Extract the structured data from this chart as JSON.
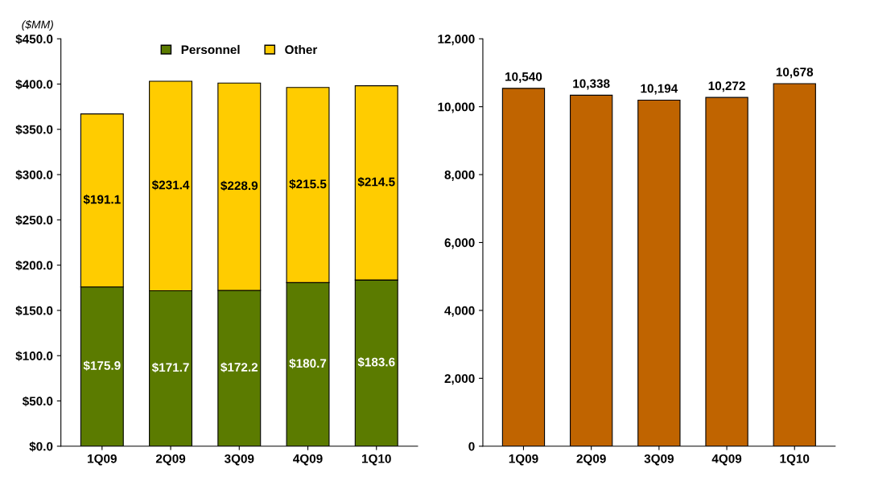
{
  "chart_data": [
    {
      "type": "bar",
      "stacked": true,
      "ylabel": "($MM)",
      "categories": [
        "1Q09",
        "2Q09",
        "3Q09",
        "4Q09",
        "1Q10"
      ],
      "series": [
        {
          "name": "Personnel",
          "color": "#5b7b00",
          "values": [
            175.9,
            171.7,
            172.2,
            180.7,
            183.6
          ],
          "value_labels": [
            "$175.9",
            "$171.7",
            "$172.2",
            "$180.7",
            "$183.6"
          ]
        },
        {
          "name": "Other",
          "color": "#ffcc00",
          "values": [
            191.1,
            231.4,
            228.9,
            215.5,
            214.5
          ],
          "value_labels": [
            "$191.1",
            "$231.4",
            "$228.9",
            "$215.5",
            "$214.5"
          ]
        }
      ],
      "ylim": [
        0,
        450
      ],
      "yticks": [
        {
          "value": 0,
          "label": "$0.0"
        },
        {
          "value": 50,
          "label": "$50.0"
        },
        {
          "value": 100,
          "label": "$100.0"
        },
        {
          "value": 150,
          "label": "$150.0"
        },
        {
          "value": 200,
          "label": "$200.0"
        },
        {
          "value": 250,
          "label": "$250.0"
        },
        {
          "value": 300,
          "label": "$300.0"
        },
        {
          "value": 350,
          "label": "$350.0"
        },
        {
          "value": 400,
          "label": "$400.0"
        },
        {
          "value": 450,
          "label": "$450.0"
        }
      ],
      "legend": "top",
      "grid": false
    },
    {
      "type": "bar",
      "categories": [
        "1Q09",
        "2Q09",
        "3Q09",
        "4Q09",
        "1Q10"
      ],
      "series": [
        {
          "color": "#c06400",
          "values": [
            10540,
            10338,
            10194,
            10272,
            10678
          ],
          "value_labels": [
            "10,540",
            "10,338",
            "10,194",
            "10,272",
            "10,678"
          ]
        }
      ],
      "ylim": [
        0,
        12000
      ],
      "yticks": [
        0,
        {
          "value": 2000,
          "label": "2,000"
        },
        {
          "value": 4000,
          "label": "4,000"
        },
        {
          "value": 6000,
          "label": "6,000"
        },
        {
          "value": 8000,
          "label": "8,000"
        },
        {
          "value": 10000,
          "label": "10,000"
        },
        {
          "value": 12000,
          "label": "12,000"
        }
      ],
      "grid": false
    }
  ]
}
